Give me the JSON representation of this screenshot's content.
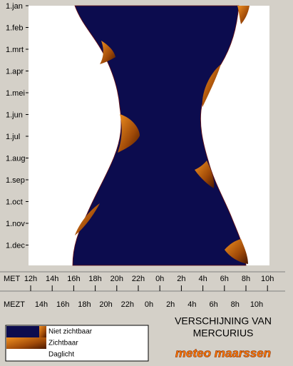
{
  "months": [
    "1.jan",
    "1.feb",
    "1.mrt",
    "1.apr",
    "1.mei",
    "1.jun",
    "1.jul",
    "1.aug",
    "1.sep",
    "1.oct",
    "1.nov",
    "1.dec"
  ],
  "met": {
    "label": "MET",
    "hours": [
      "12h",
      "14h",
      "16h",
      "18h",
      "20h",
      "22h",
      "0h",
      "2h",
      "4h",
      "6h",
      "8h",
      "10h"
    ]
  },
  "mezt": {
    "label": "MEZT",
    "hours": [
      "14h",
      "16h",
      "18h",
      "20h",
      "22h",
      "0h",
      "2h",
      "4h",
      "6h",
      "8h",
      "10h"
    ]
  },
  "title": [
    "VERSCHIJNING VAN",
    "MERCURIUS"
  ],
  "legend": [
    "Niet zichtbaar",
    "Zichtbaar",
    "Daglicht"
  ],
  "brand": "meteo maarssen"
}
